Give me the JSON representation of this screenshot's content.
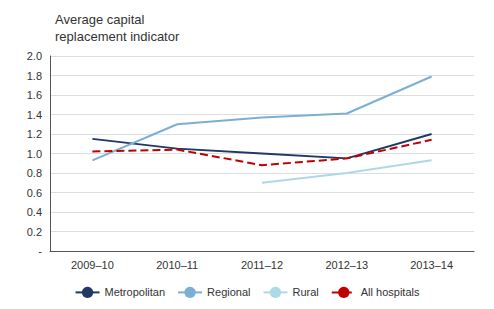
{
  "chart_data": {
    "type": "line",
    "title": "Average capital\nreplacement indicator",
    "categories": [
      "2009–10",
      "2010–11",
      "2011–12",
      "2012–13",
      "2013–14"
    ],
    "series": [
      {
        "name": "Metropolitan",
        "color": "#1f3864",
        "values": [
          1.15,
          1.05,
          1.0,
          0.95,
          1.2
        ]
      },
      {
        "name": "Regional",
        "color": "#7bafd4",
        "values": [
          0.93,
          1.3,
          1.37,
          1.41,
          1.79
        ]
      },
      {
        "name": "Rural",
        "color": "#add8e6",
        "values": [
          null,
          null,
          0.7,
          0.8,
          0.93
        ]
      },
      {
        "name": "All hospitals",
        "color": "#c00000",
        "line_style": "dashed",
        "values": [
          1.02,
          1.04,
          0.88,
          0.95,
          1.14
        ]
      }
    ],
    "ylim": [
      0,
      2.0
    ],
    "yticks": [
      {
        "value": 0,
        "label": "-"
      },
      0.2,
      0.4,
      0.6,
      0.8,
      {
        "value": 1.0,
        "label": "1.0"
      },
      1.2,
      1.4,
      1.6,
      1.8,
      {
        "value": 2.0,
        "label": "2.0"
      }
    ],
    "grid": true,
    "legend": "bottom"
  }
}
